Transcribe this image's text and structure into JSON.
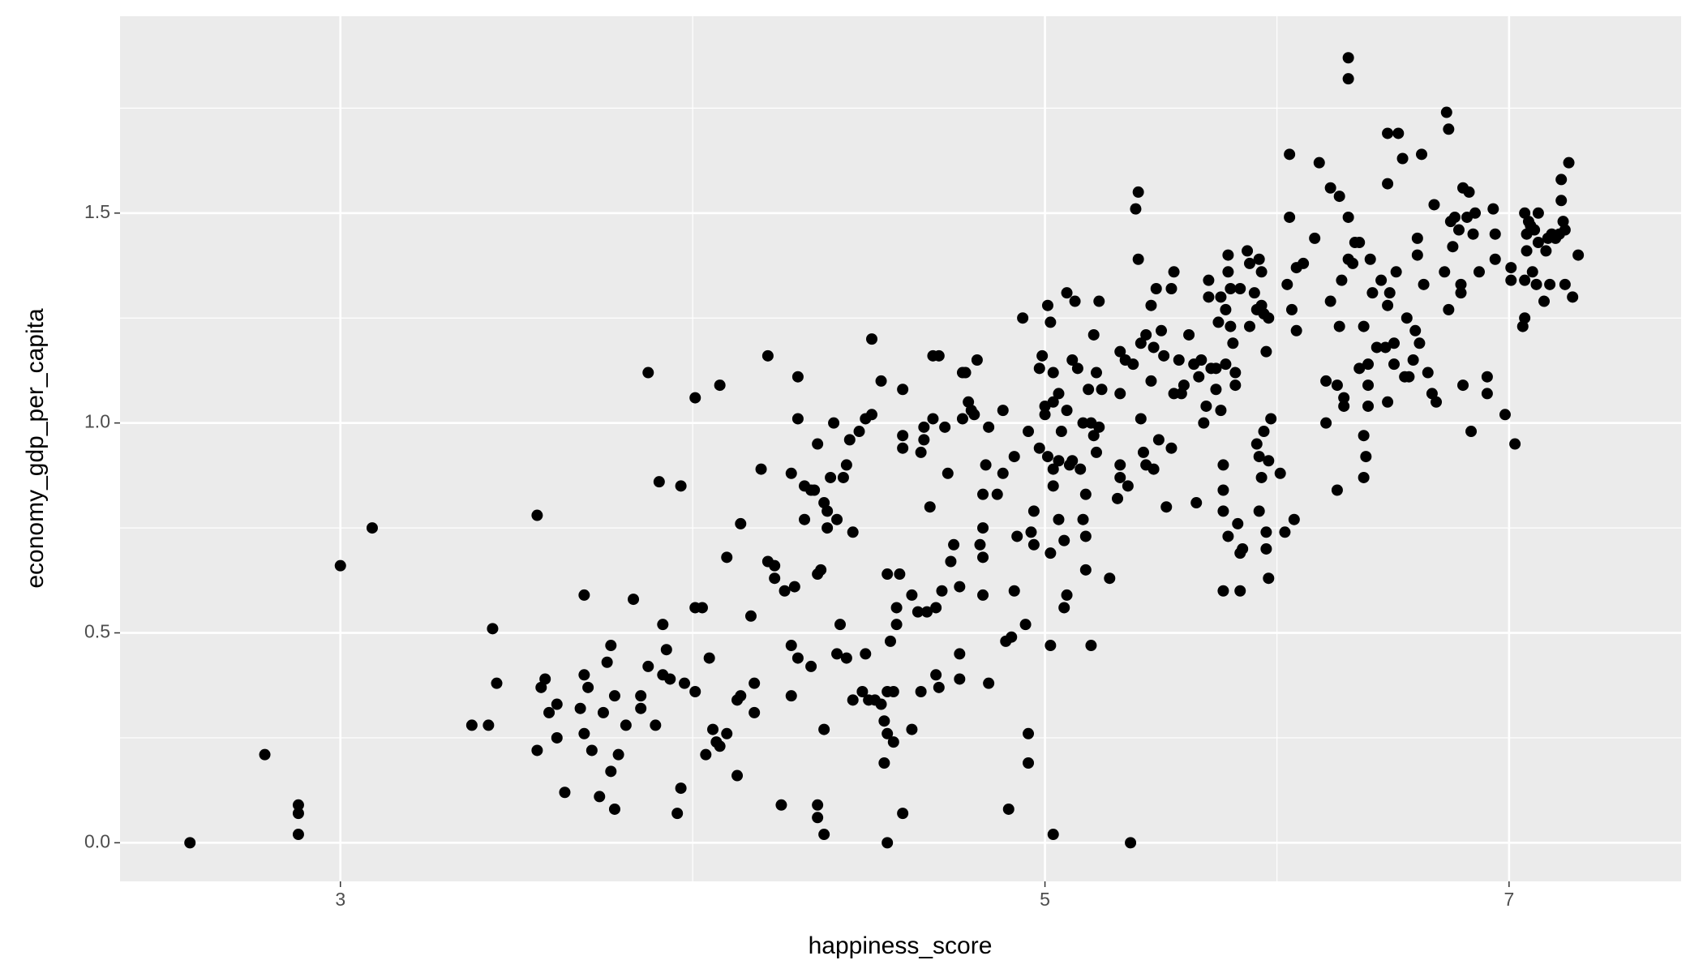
{
  "chart_data": {
    "type": "scatter",
    "x_label": "happiness_score",
    "y_label": "economy_gdp_per_capita",
    "x_log": true,
    "grid": true,
    "color": "#000000",
    "xlim": [
      2.557,
      7.93
    ],
    "xticks": [
      3,
      5,
      7
    ],
    "x_minor_ticks": [
      3.873,
      5.916
    ],
    "ylim": [
      -0.092,
      1.969
    ],
    "yticks": [
      {
        "value": 0,
        "label": "0.0"
      },
      0.5,
      {
        "value": 1,
        "label": "1.0"
      },
      1.5
    ],
    "y_minor_ticks": [
      0.25,
      0.75,
      1.25,
      1.75
    ],
    "x": [
      2.69,
      2.84,
      2.91,
      2.91,
      2.91,
      3.0,
      3.07,
      3.3,
      3.34,
      3.35,
      3.36,
      3.46,
      3.46,
      3.47,
      3.48,
      3.49,
      3.51,
      3.51,
      3.53,
      3.57,
      3.58,
      3.58,
      3.58,
      3.59,
      3.6,
      3.62,
      3.63,
      3.64,
      3.65,
      3.65,
      3.66,
      3.66,
      3.67,
      3.69,
      3.71,
      3.73,
      3.73,
      3.75,
      3.75,
      3.77,
      3.78,
      3.79,
      3.79,
      3.8,
      3.81,
      3.83,
      3.84,
      3.84,
      3.85,
      3.88,
      3.88,
      3.88,
      3.9,
      3.91,
      3.92,
      3.93,
      3.94,
      3.95,
      3.95,
      3.97,
      3.97,
      4.0,
      4.0,
      4.01,
      4.01,
      4.04,
      4.05,
      4.05,
      4.07,
      4.09,
      4.09,
      4.11,
      4.11,
      4.13,
      4.14,
      4.16,
      4.16,
      4.16,
      4.17,
      4.18,
      4.18,
      4.18,
      4.2,
      4.2,
      4.22,
      4.22,
      4.23,
      4.24,
      4.24,
      4.24,
      4.24,
      4.25,
      4.26,
      4.26,
      4.26,
      4.27,
      4.27,
      4.28,
      4.29,
      4.3,
      4.3,
      4.31,
      4.32,
      4.33,
      4.33,
      4.34,
      4.35,
      4.35,
      4.37,
      4.38,
      4.39,
      4.39,
      4.4,
      4.41,
      4.41,
      4.42,
      4.44,
      4.44,
      4.45,
      4.45,
      4.46,
      4.46,
      4.46,
      4.46,
      4.47,
      4.48,
      4.48,
      4.49,
      4.49,
      4.5,
      4.51,
      4.51,
      4.51,
      4.51,
      4.54,
      4.54,
      4.56,
      4.57,
      4.57,
      4.58,
      4.58,
      4.59,
      4.6,
      4.61,
      4.61,
      4.62,
      4.62,
      4.63,
      4.63,
      4.64,
      4.65,
      4.66,
      4.67,
      4.68,
      4.7,
      4.7,
      4.7,
      4.71,
      4.71,
      4.72,
      4.73,
      4.74,
      4.75,
      4.76,
      4.77,
      4.78,
      4.78,
      4.78,
      4.78,
      4.79,
      4.8,
      4.8,
      4.83,
      4.85,
      4.85,
      4.86,
      4.87,
      4.88,
      4.89,
      4.89,
      4.9,
      4.92,
      4.93,
      4.94,
      4.94,
      4.94,
      4.95,
      4.96,
      4.96,
      4.98,
      4.98,
      4.99,
      5.0,
      5.0,
      5.01,
      5.01,
      5.02,
      5.02,
      5.02,
      5.03,
      5.03,
      5.03,
      5.03,
      5.03,
      5.05,
      5.05,
      5.05,
      5.06,
      5.07,
      5.07,
      5.08,
      5.08,
      5.08,
      5.09,
      5.1,
      5.1,
      5.11,
      5.12,
      5.13,
      5.14,
      5.14,
      5.15,
      5.15,
      5.15,
      5.16,
      5.17,
      5.17,
      5.18,
      5.18,
      5.19,
      5.19,
      5.2,
      5.2,
      5.21,
      5.24,
      5.27,
      5.28,
      5.28,
      5.28,
      5.28,
      5.3,
      5.31,
      5.32,
      5.33,
      5.34,
      5.35,
      5.35,
      5.36,
      5.36,
      5.37,
      5.38,
      5.38,
      5.4,
      5.4,
      5.41,
      5.41,
      5.42,
      5.43,
      5.44,
      5.45,
      5.46,
      5.48,
      5.48,
      5.49,
      5.49,
      5.51,
      5.52,
      5.53,
      5.55,
      5.57,
      5.58,
      5.59,
      5.6,
      5.61,
      5.62,
      5.63,
      5.63,
      5.64,
      5.66,
      5.66,
      5.67,
      5.68,
      5.68,
      5.69,
      5.69,
      5.69,
      5.69,
      5.7,
      5.7,
      5.71,
      5.71,
      5.71,
      5.72,
      5.72,
      5.73,
      5.74,
      5.74,
      5.75,
      5.76,
      5.76,
      5.76,
      5.77,
      5.79,
      5.8,
      5.8,
      5.82,
      5.83,
      5.83,
      5.84,
      5.84,
      5.84,
      5.85,
      5.85,
      5.85,
      5.86,
      5.86,
      5.87,
      5.87,
      5.87,
      5.88,
      5.88,
      5.88,
      5.89,
      5.93,
      5.95,
      5.96,
      5.97,
      5.97,
      5.98,
      5.99,
      6.0,
      6.0,
      6.03,
      6.08,
      6.1,
      6.13,
      6.13,
      6.15,
      6.15,
      6.18,
      6.18,
      6.19,
      6.19,
      6.2,
      6.21,
      6.21,
      6.23,
      6.23,
      6.23,
      6.23,
      6.25,
      6.26,
      6.28,
      6.28,
      6.3,
      6.3,
      6.3,
      6.31,
      6.32,
      6.32,
      6.32,
      6.33,
      6.34,
      6.36,
      6.38,
      6.4,
      6.41,
      6.41,
      6.41,
      6.41,
      6.42,
      6.44,
      6.44,
      6.45,
      6.46,
      6.48,
      6.49,
      6.5,
      6.51,
      6.53,
      6.54,
      6.55,
      6.55,
      6.56,
      6.57,
      6.58,
      6.6,
      6.62,
      6.63,
      6.64,
      6.68,
      6.7,
      6.69,
      6.7,
      6.71,
      6.72,
      6.73,
      6.75,
      6.76,
      6.76,
      6.77,
      6.77,
      6.79,
      6.8,
      6.81,
      6.82,
      6.83,
      6.85,
      6.89,
      6.89,
      6.92,
      6.93,
      6.93,
      6.98,
      7.01,
      7.01,
      7.03,
      7.07,
      7.08,
      7.08,
      7.08,
      7.09,
      7.09,
      7.1,
      7.11,
      7.12,
      7.13,
      7.14,
      7.15,
      7.15,
      7.18,
      7.19,
      7.2,
      7.21,
      7.22,
      7.24,
      7.26,
      7.27,
      7.27,
      7.28,
      7.29,
      7.29,
      7.31,
      7.33,
      7.36
    ],
    "values": [
      0.0,
      0.21,
      0.09,
      0.07,
      0.02,
      0.66,
      0.75,
      0.28,
      0.28,
      0.51,
      0.38,
      0.78,
      0.22,
      0.37,
      0.39,
      0.31,
      0.25,
      0.33,
      0.12,
      0.32,
      0.4,
      0.59,
      0.26,
      0.37,
      0.22,
      0.11,
      0.31,
      0.43,
      0.17,
      0.47,
      0.35,
      0.08,
      0.21,
      0.28,
      0.58,
      0.35,
      0.32,
      1.12,
      0.42,
      0.28,
      0.86,
      0.4,
      0.52,
      0.46,
      0.39,
      0.07,
      0.13,
      0.85,
      0.38,
      1.06,
      0.56,
      0.36,
      0.56,
      0.21,
      0.44,
      0.27,
      0.24,
      0.23,
      1.09,
      0.68,
      0.26,
      0.16,
      0.34,
      0.35,
      0.76,
      0.54,
      0.38,
      0.31,
      0.89,
      0.67,
      1.16,
      0.63,
      0.66,
      0.09,
      0.6,
      0.47,
      0.35,
      0.88,
      0.61,
      1.11,
      1.01,
      0.44,
      0.85,
      0.77,
      0.42,
      0.84,
      0.84,
      0.64,
      0.06,
      0.95,
      0.09,
      0.65,
      0.81,
      0.02,
      0.27,
      0.75,
      0.79,
      0.87,
      1.0,
      0.45,
      0.77,
      0.52,
      0.87,
      0.44,
      0.9,
      0.96,
      0.34,
      0.74,
      0.98,
      0.36,
      0.45,
      1.01,
      0.34,
      1.02,
      1.2,
      0.34,
      1.1,
      0.33,
      0.29,
      0.19,
      0.64,
      0.0,
      0.26,
      0.36,
      0.48,
      0.24,
      0.36,
      0.56,
      0.52,
      0.64,
      0.07,
      1.08,
      0.97,
      0.94,
      0.27,
      0.59,
      0.55,
      0.36,
      0.93,
      0.99,
      0.96,
      0.55,
      0.8,
      1.01,
      1.16,
      0.4,
      0.56,
      0.37,
      1.16,
      0.6,
      0.99,
      0.88,
      0.67,
      0.71,
      0.39,
      0.61,
      0.45,
      1.12,
      1.01,
      1.12,
      1.05,
      1.03,
      1.02,
      1.15,
      0.71,
      0.75,
      0.68,
      0.59,
      0.83,
      0.9,
      0.38,
      0.99,
      0.83,
      1.03,
      0.88,
      0.48,
      0.08,
      0.49,
      0.6,
      0.92,
      0.73,
      1.25,
      0.52,
      0.98,
      0.26,
      0.19,
      0.74,
      0.71,
      0.79,
      0.94,
      1.13,
      1.16,
      1.04,
      1.02,
      1.28,
      0.92,
      0.69,
      0.47,
      1.24,
      1.12,
      0.89,
      0.02,
      0.85,
      1.05,
      1.07,
      0.91,
      0.77,
      0.98,
      0.56,
      0.72,
      1.31,
      0.59,
      1.03,
      0.9,
      0.91,
      1.15,
      1.29,
      1.13,
      0.89,
      0.77,
      1.0,
      0.65,
      0.73,
      0.83,
      1.08,
      1.0,
      0.47,
      1.21,
      0.97,
      0.93,
      1.12,
      1.29,
      0.99,
      1.08,
      0.63,
      0.82,
      1.17,
      1.07,
      0.87,
      0.9,
      1.15,
      0.85,
      0.0,
      1.14,
      1.51,
      1.39,
      1.55,
      1.01,
      1.19,
      0.93,
      1.21,
      0.9,
      1.28,
      1.1,
      1.18,
      0.89,
      1.32,
      0.96,
      1.22,
      1.16,
      0.8,
      0.94,
      1.32,
      1.36,
      1.07,
      1.15,
      1.07,
      1.09,
      1.21,
      1.14,
      0.81,
      1.11,
      1.15,
      1.0,
      1.04,
      1.34,
      1.3,
      1.13,
      1.08,
      1.13,
      1.24,
      1.03,
      1.3,
      0.6,
      0.84,
      0.9,
      0.79,
      1.14,
      1.27,
      1.36,
      0.73,
      1.4,
      1.32,
      1.23,
      1.19,
      1.12,
      1.09,
      0.76,
      0.69,
      0.6,
      1.32,
      0.7,
      1.41,
      1.38,
      1.23,
      1.31,
      1.27,
      0.95,
      0.92,
      0.79,
      1.39,
      1.28,
      0.87,
      1.36,
      1.26,
      0.98,
      0.7,
      0.74,
      1.17,
      1.25,
      0.91,
      0.63,
      1.01,
      0.88,
      0.74,
      1.33,
      1.49,
      1.64,
      1.27,
      0.77,
      1.37,
      1.22,
      1.38,
      1.44,
      1.62,
      1.0,
      1.1,
      1.29,
      1.56,
      0.84,
      1.09,
      1.54,
      1.23,
      1.34,
      1.06,
      1.04,
      1.87,
      1.82,
      1.49,
      1.39,
      1.38,
      1.43,
      1.13,
      1.43,
      0.87,
      1.23,
      0.97,
      0.92,
      1.14,
      1.09,
      1.04,
      1.39,
      1.31,
      1.18,
      1.34,
      1.18,
      1.57,
      1.05,
      1.28,
      1.69,
      1.31,
      1.14,
      1.19,
      1.36,
      1.69,
      1.63,
      1.11,
      1.25,
      1.11,
      1.15,
      1.22,
      1.44,
      1.4,
      1.19,
      1.64,
      1.33,
      1.12,
      1.07,
      1.52,
      1.05,
      1.36,
      1.27,
      1.74,
      1.7,
      1.48,
      1.42,
      1.49,
      1.46,
      1.33,
      1.31,
      1.56,
      1.09,
      1.49,
      1.55,
      0.98,
      1.45,
      1.5,
      1.36,
      1.11,
      1.07,
      1.51,
      1.39,
      1.45,
      1.02,
      1.34,
      1.37,
      0.95,
      1.23,
      1.25,
      1.34,
      1.5,
      1.45,
      1.41,
      1.48,
      1.47,
      1.36,
      1.46,
      1.33,
      1.43,
      1.5,
      1.29,
      1.41,
      1.44,
      1.33,
      1.45,
      1.44,
      1.45,
      1.58,
      1.53,
      1.48,
      1.46,
      1.33,
      1.62,
      1.3,
      1.4
    ]
  }
}
